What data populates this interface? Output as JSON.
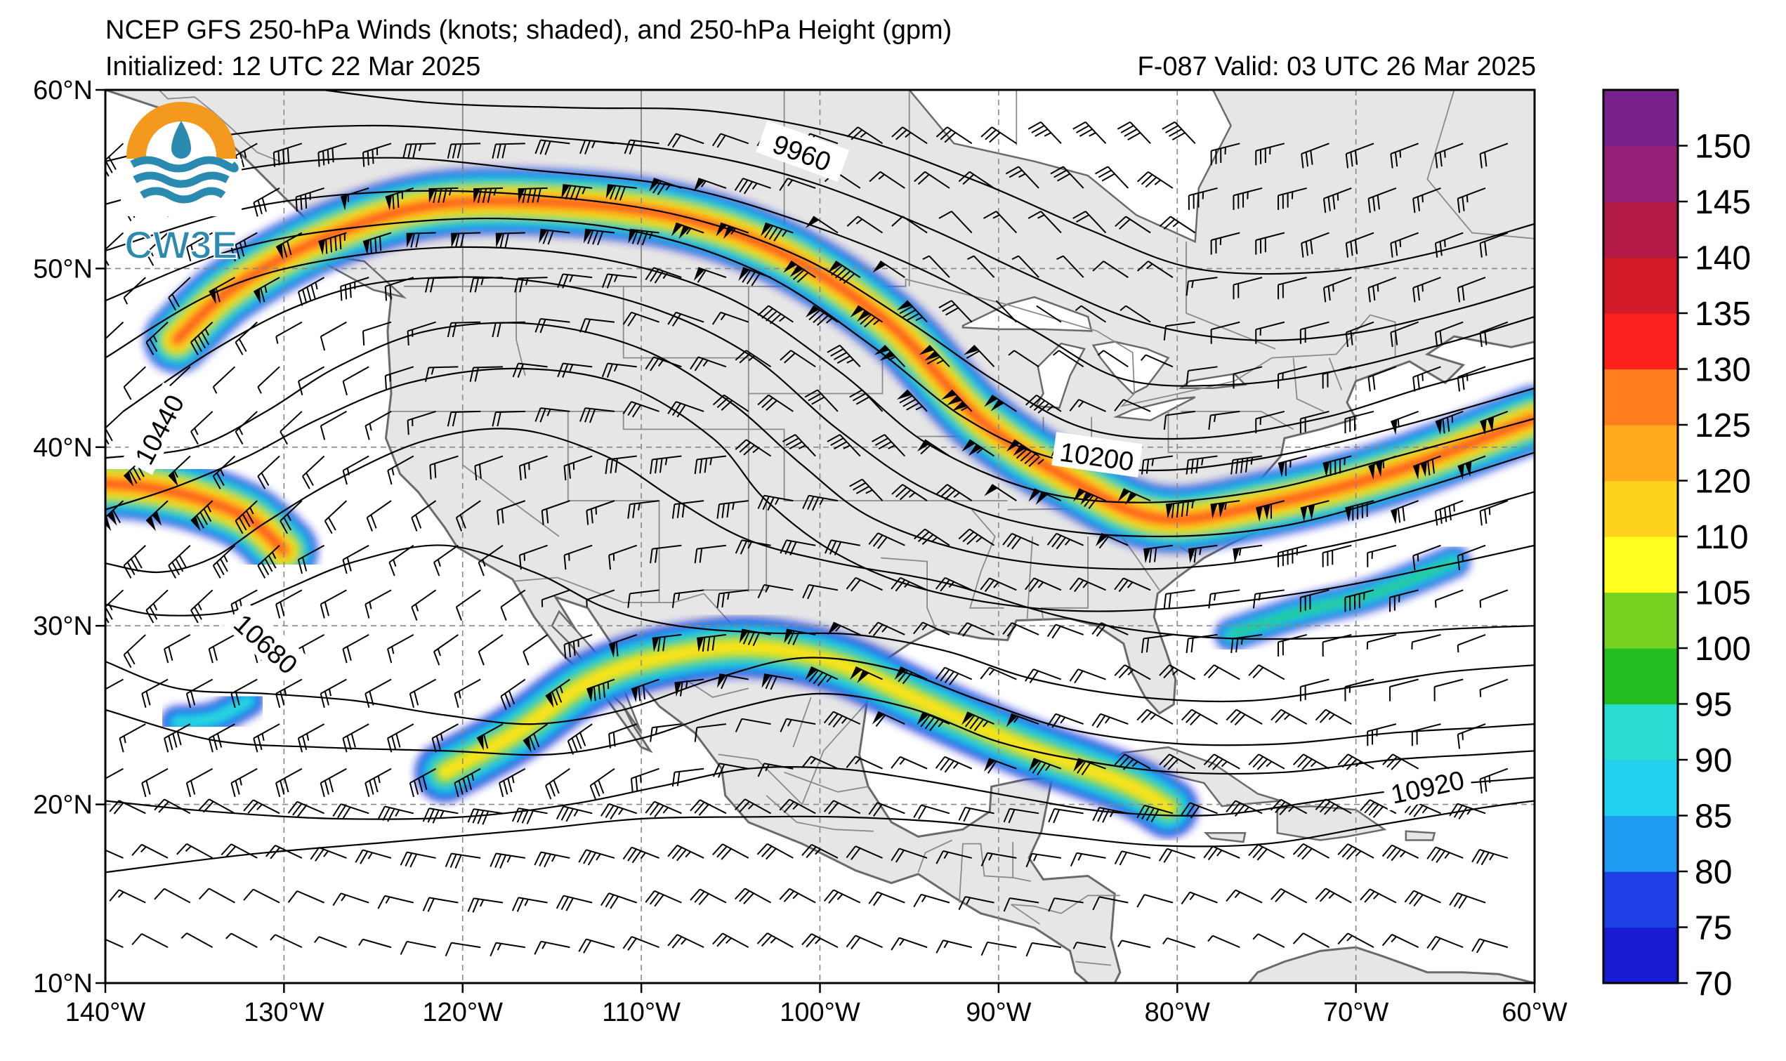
{
  "header": {
    "title": "NCEP GFS 250-hPa Winds (knots; shaded), and 250-hPa Height (gpm)",
    "initialized": "Initialized: 12 UTC 22 Mar 2025",
    "valid": "F-087  Valid: 03 UTC 26 Mar 2025"
  },
  "logo": {
    "text": "CW3E"
  },
  "map": {
    "lon_range": [
      -140,
      -60
    ],
    "lat_range": [
      10,
      60
    ],
    "lon_ticks": [
      {
        "lon": -140,
        "label": "140°W"
      },
      {
        "lon": -130,
        "label": "130°W"
      },
      {
        "lon": -120,
        "label": "120°W"
      },
      {
        "lon": -110,
        "label": "110°W"
      },
      {
        "lon": -100,
        "label": "100°W"
      },
      {
        "lon": -90,
        "label": "90°W"
      },
      {
        "lon": -80,
        "label": "80°W"
      },
      {
        "lon": -70,
        "label": "70°W"
      },
      {
        "lon": -60,
        "label": "60°W"
      }
    ],
    "lat_ticks": [
      {
        "lat": 60,
        "label": "60°N"
      },
      {
        "lat": 50,
        "label": "50°N"
      },
      {
        "lat": 40,
        "label": "40°N"
      },
      {
        "lat": 30,
        "label": "30°N"
      },
      {
        "lat": 20,
        "label": "20°N"
      },
      {
        "lat": 10,
        "label": "10°N"
      }
    ],
    "grid": true,
    "land_color": "#e6e6e6",
    "ocean_color": "#ffffff",
    "contour_labels": [
      {
        "text": "9960",
        "lon": -101,
        "lat": 56.5,
        "angle": 20
      },
      {
        "text": "10440",
        "lon": -137,
        "lat": 41,
        "angle": -62
      },
      {
        "text": "10200",
        "lon": -84.5,
        "lat": 39.5,
        "angle": 8
      },
      {
        "text": "10680",
        "lon": -131,
        "lat": 29,
        "angle": 42
      },
      {
        "text": "10920",
        "lon": -66,
        "lat": 21,
        "angle": -12
      }
    ]
  },
  "colorbar": {
    "levels": [
      70,
      75,
      80,
      85,
      90,
      95,
      100,
      105,
      110,
      120,
      125,
      130,
      135,
      140,
      145,
      150,
      155
    ],
    "labels": [
      "70",
      "75",
      "80",
      "85",
      "90",
      "95",
      "100",
      "105",
      "110",
      "120",
      "125",
      "130",
      "135",
      "140",
      "145",
      "150"
    ],
    "colors": [
      "#1a1ad2",
      "#1e40e6",
      "#1e9af0",
      "#22d0f0",
      "#2adcd2",
      "#22be22",
      "#78d222",
      "#ffff20",
      "#ffd21c",
      "#ffaa1c",
      "#ff7d1c",
      "#ff2020",
      "#d21a28",
      "#b41a46",
      "#962078",
      "#78208c"
    ]
  }
}
